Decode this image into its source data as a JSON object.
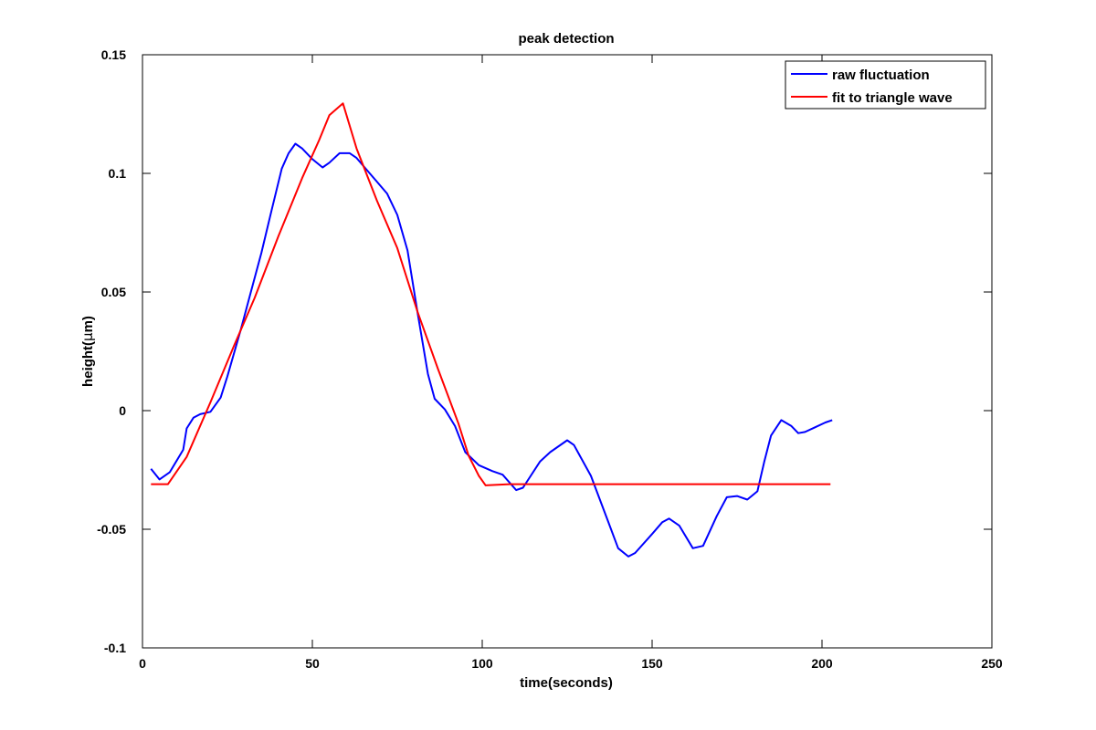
{
  "chart_data": {
    "type": "line",
    "title": "peak detection",
    "xlabel": "time(seconds)",
    "ylabel_prefix": "height(",
    "ylabel_mu": "μ",
    "ylabel_suffix": "m)",
    "xlim": [
      0,
      250
    ],
    "ylim": [
      -0.1,
      0.15
    ],
    "x_ticks": [
      0,
      50,
      100,
      150,
      200,
      250
    ],
    "y_ticks": [
      0.15,
      0.1,
      0.05,
      0,
      -0.05,
      -0.1
    ],
    "x_tick_labels": [
      "0",
      "50",
      "100",
      "150",
      "200",
      "250"
    ],
    "y_tick_labels": [
      "0.15",
      "0.1",
      "0.05",
      "0",
      "-0.05",
      "-0.1"
    ],
    "grid": false,
    "legend_position": "top-right",
    "series": [
      {
        "name": "raw fluctuation",
        "color": "#0000ff",
        "points": [
          [
            2.5,
            -0.0245
          ],
          [
            5,
            -0.029
          ],
          [
            8,
            -0.026
          ],
          [
            12,
            -0.0165
          ],
          [
            13,
            -0.0075
          ],
          [
            15,
            -0.003
          ],
          [
            17,
            -0.0015
          ],
          [
            20,
            -0.0005
          ],
          [
            23,
            0.0055
          ],
          [
            25,
            0.0145
          ],
          [
            29,
            0.0345
          ],
          [
            32,
            0.0505
          ],
          [
            35,
            0.0665
          ],
          [
            38,
            0.0845
          ],
          [
            41,
            0.102
          ],
          [
            43,
            0.1085
          ],
          [
            45,
            0.1125
          ],
          [
            47,
            0.1105
          ],
          [
            50,
            0.106
          ],
          [
            53,
            0.1025
          ],
          [
            55,
            0.1045
          ],
          [
            58,
            0.1085
          ],
          [
            61,
            0.1085
          ],
          [
            63,
            0.1065
          ],
          [
            66,
            0.1015
          ],
          [
            69,
            0.0965
          ],
          [
            72,
            0.0915
          ],
          [
            75,
            0.0825
          ],
          [
            78,
            0.0675
          ],
          [
            81,
            0.041
          ],
          [
            84,
            0.0155
          ],
          [
            86,
            0.005
          ],
          [
            89,
            0.0005
          ],
          [
            92,
            -0.0065
          ],
          [
            95,
            -0.0175
          ],
          [
            99,
            -0.023
          ],
          [
            103,
            -0.0255
          ],
          [
            106,
            -0.027
          ],
          [
            110,
            -0.0335
          ],
          [
            112,
            -0.0325
          ],
          [
            117,
            -0.0215
          ],
          [
            120,
            -0.0175
          ],
          [
            125,
            -0.0125
          ],
          [
            127,
            -0.0145
          ],
          [
            132,
            -0.0275
          ],
          [
            137,
            -0.0465
          ],
          [
            140,
            -0.058
          ],
          [
            143,
            -0.0615
          ],
          [
            145,
            -0.06
          ],
          [
            150,
            -0.052
          ],
          [
            153,
            -0.047
          ],
          [
            155,
            -0.0455
          ],
          [
            158,
            -0.0485
          ],
          [
            162,
            -0.058
          ],
          [
            165,
            -0.057
          ],
          [
            169,
            -0.0445
          ],
          [
            172,
            -0.0365
          ],
          [
            175,
            -0.036
          ],
          [
            178,
            -0.0375
          ],
          [
            181,
            -0.034
          ],
          [
            183,
            -0.0215
          ],
          [
            185,
            -0.0105
          ],
          [
            188,
            -0.004
          ],
          [
            191,
            -0.0065
          ],
          [
            193,
            -0.0095
          ],
          [
            195,
            -0.009
          ],
          [
            198,
            -0.007
          ],
          [
            201,
            -0.005
          ],
          [
            203,
            -0.004
          ]
        ]
      },
      {
        "name": "fit to triangle wave",
        "color": "#ff0000",
        "points": [
          [
            2.5,
            -0.031
          ],
          [
            7.5,
            -0.031
          ],
          [
            13,
            -0.0195
          ],
          [
            20,
            0.0035
          ],
          [
            27,
            0.0275
          ],
          [
            33,
            0.0475
          ],
          [
            40,
            0.0735
          ],
          [
            47,
            0.098
          ],
          [
            52,
            0.114
          ],
          [
            55,
            0.1245
          ],
          [
            59,
            0.1295
          ],
          [
            63,
            0.1105
          ],
          [
            69,
            0.0885
          ],
          [
            75,
            0.0685
          ],
          [
            81,
            0.0415
          ],
          [
            87,
            0.0175
          ],
          [
            93,
            -0.0055
          ],
          [
            96,
            -0.019
          ],
          [
            99,
            -0.0275
          ],
          [
            101,
            -0.0315
          ],
          [
            108,
            -0.031
          ],
          [
            202.5,
            -0.031
          ]
        ]
      }
    ]
  }
}
